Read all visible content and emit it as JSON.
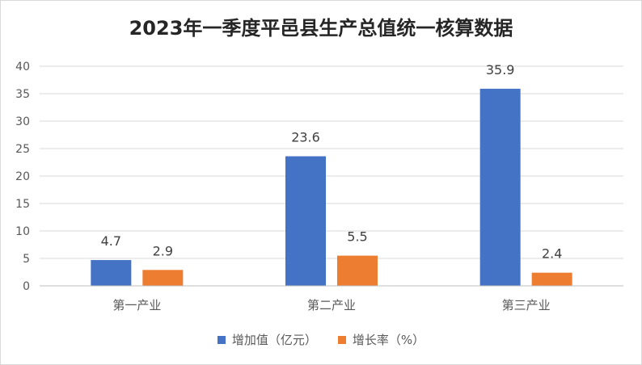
{
  "chart_data": {
    "type": "bar",
    "title": "2023年一季度平邑县生产总值统一核算数据",
    "categories": [
      "第一产业",
      "第二产业",
      "第三产业"
    ],
    "series": [
      {
        "name": "增加值（亿元）",
        "values": [
          4.7,
          23.6,
          35.9
        ],
        "color": "#4472C4"
      },
      {
        "name": "增长率（%）",
        "values": [
          2.9,
          5.5,
          2.4
        ],
        "color": "#ED7D31"
      }
    ],
    "ylim": [
      0,
      40
    ],
    "yticks": [
      0,
      5,
      10,
      15,
      20,
      25,
      30,
      35,
      40
    ],
    "grid": true,
    "legend_position": "bottom",
    "xlabel": "",
    "ylabel": ""
  }
}
